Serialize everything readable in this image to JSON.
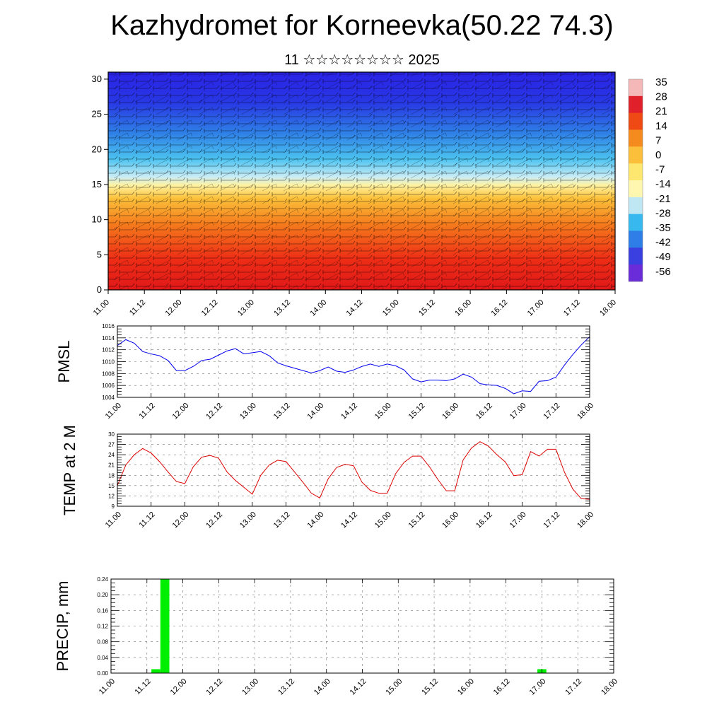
{
  "title": "Kazhydromet for Korneevka(50.22 74.3)",
  "subtitle": "11 ☆☆☆☆☆☆☆☆ 2025",
  "chart_data": [
    {
      "type": "heatmap",
      "name": "cross-section",
      "x_ticks": [
        "11.00",
        "11.12",
        "12.00",
        "12.12",
        "13.00",
        "13.12",
        "14.00",
        "14.12",
        "15.00",
        "15.12",
        "16.00",
        "16.12",
        "17.00",
        "17.12",
        "18.00"
      ],
      "y_ticks": [
        0,
        5,
        10,
        15,
        20,
        25,
        30
      ],
      "ylim": [
        0,
        31
      ],
      "colorbar_labels": [
        "35",
        "28",
        "21",
        "14",
        "7",
        "0",
        "-7",
        "-14",
        "-21",
        "-28",
        "-35",
        "-42",
        "-49",
        "-56"
      ],
      "colors": [
        "#f5b8b8",
        "#e0202a",
        "#f04a14",
        "#f58a1e",
        "#fbbf3c",
        "#fde76e",
        "#fff7b0",
        "#bfe6f3",
        "#37b8ef",
        "#2f7de6",
        "#3a3fe0",
        "#6a2cd8"
      ]
    },
    {
      "type": "line",
      "name": "pmsl",
      "ylabel": "PMSL",
      "x_ticks": [
        "11.00",
        "11.12",
        "12.00",
        "12.12",
        "13.00",
        "13.12",
        "14.00",
        "14.12",
        "15.00",
        "15.12",
        "16.00",
        "16.12",
        "17.00",
        "17.12",
        "18.00"
      ],
      "y_ticks": [
        1004,
        1006,
        1008,
        1010,
        1012,
        1014,
        1016
      ],
      "ylim": [
        1004,
        1016
      ],
      "series_color": "#0000ee",
      "values": [
        1012.7,
        1013.7,
        1013.1,
        1011.7,
        1011.3,
        1011.0,
        1010.2,
        1008.5,
        1008.5,
        1009.2,
        1010.2,
        1010.4,
        1011.1,
        1011.8,
        1012.2,
        1011.3,
        1011.5,
        1011.7,
        1011.0,
        1009.8,
        1009.3,
        1008.9,
        1008.5,
        1008.1,
        1008.5,
        1009.1,
        1008.4,
        1008.2,
        1008.6,
        1009.2,
        1009.6,
        1009.2,
        1009.6,
        1009.3,
        1008.6,
        1007.1,
        1006.6,
        1006.9,
        1006.9,
        1006.8,
        1007.1,
        1007.9,
        1007.4,
        1006.3,
        1006.1,
        1006.0,
        1005.5,
        1004.6,
        1005.1,
        1005.0,
        1006.7,
        1006.8,
        1007.4,
        1009.4,
        1011.2,
        1012.8,
        1014.2
      ]
    },
    {
      "type": "line",
      "name": "temp",
      "ylabel": "TEMP at 2 M",
      "x_ticks": [
        "11.00",
        "11.12",
        "12.00",
        "12.12",
        "13.00",
        "13.12",
        "14.00",
        "14.12",
        "15.00",
        "15.12",
        "16.00",
        "16.12",
        "17.00",
        "17.12",
        "18.00"
      ],
      "y_ticks": [
        9,
        12,
        15,
        18,
        21,
        24,
        27,
        30
      ],
      "ylim": [
        9,
        30
      ],
      "series_color": "#dd0000",
      "values": [
        15.0,
        21.0,
        24.0,
        25.8,
        24.5,
        22.0,
        19.0,
        16.2,
        15.6,
        20.5,
        23.3,
        23.8,
        23.0,
        19.0,
        16.5,
        14.5,
        12.5,
        18.0,
        21.0,
        22.4,
        22.0,
        19.0,
        16.0,
        12.8,
        11.4,
        17.0,
        20.3,
        21.2,
        20.8,
        16.0,
        13.6,
        12.8,
        12.8,
        18.5,
        21.8,
        23.6,
        23.6,
        20.5,
        16.8,
        13.5,
        13.5,
        22.5,
        26.0,
        27.8,
        26.5,
        24.0,
        21.9,
        17.9,
        18.2,
        24.9,
        23.6,
        25.6,
        25.6,
        19.0,
        14.0,
        11.2,
        11.0
      ]
    },
    {
      "type": "bar",
      "name": "precip",
      "ylabel": "PRECIP, mm",
      "x_ticks": [
        "11.00",
        "11.12",
        "12.00",
        "12.12",
        "13.00",
        "13.12",
        "14.00",
        "14.12",
        "15.00",
        "15.12",
        "16.00",
        "16.12",
        "17.00",
        "17.12",
        "18.00"
      ],
      "y_ticks": [
        "0.00",
        "0.04",
        "0.08",
        "0.12",
        "0.16",
        "0.20",
        "0.24"
      ],
      "ylim": [
        0,
        0.24
      ],
      "bar_color": "#00ee00",
      "bars": [
        {
          "x_hours": 15,
          "value": 0.01
        },
        {
          "x_hours": 18,
          "value": 0.24
        },
        {
          "x_hours": 144,
          "value": 0.01
        }
      ]
    }
  ]
}
